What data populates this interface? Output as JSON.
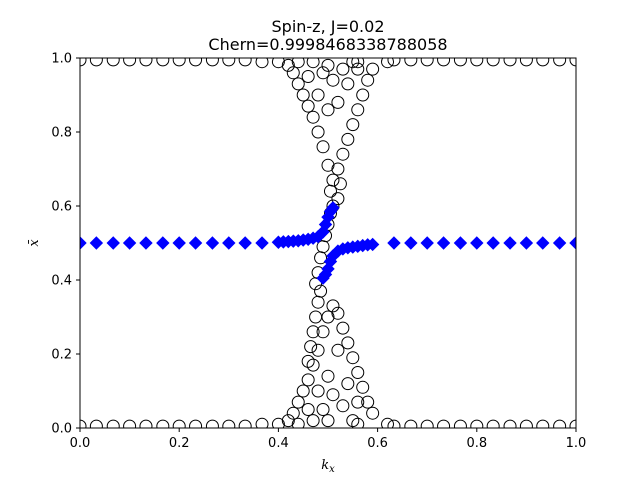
{
  "chart_data": {
    "type": "scatter",
    "title_line1": "Spin-z, J=0.02",
    "title_line2": "Chern=0.9998468338788058",
    "xlabel": "k_x",
    "ylabel": "x̄",
    "xlim": [
      0,
      1
    ],
    "ylim": [
      0,
      1
    ],
    "xticks": [
      "0.0",
      "0.2",
      "0.4",
      "0.6",
      "0.8",
      "1.0"
    ],
    "yticks": [
      "0.0",
      "0.2",
      "0.4",
      "0.6",
      "0.8",
      "1.0"
    ],
    "grid": false,
    "series": [
      {
        "marker": "open-circle",
        "color": "#000000",
        "points": [
          [
            0.0,
            0.995
          ],
          [
            0.033,
            0.995
          ],
          [
            0.067,
            0.995
          ],
          [
            0.1,
            0.995
          ],
          [
            0.133,
            0.995
          ],
          [
            0.167,
            0.995
          ],
          [
            0.2,
            0.995
          ],
          [
            0.233,
            0.995
          ],
          [
            0.267,
            0.995
          ],
          [
            0.3,
            0.995
          ],
          [
            0.333,
            0.995
          ],
          [
            0.367,
            0.99
          ],
          [
            0.4,
            0.99
          ],
          [
            0.0,
            0.005
          ],
          [
            0.033,
            0.005
          ],
          [
            0.067,
            0.005
          ],
          [
            0.1,
            0.005
          ],
          [
            0.133,
            0.005
          ],
          [
            0.167,
            0.005
          ],
          [
            0.2,
            0.005
          ],
          [
            0.233,
            0.005
          ],
          [
            0.267,
            0.005
          ],
          [
            0.3,
            0.005
          ],
          [
            0.333,
            0.005
          ],
          [
            0.367,
            0.01
          ],
          [
            0.4,
            0.01
          ],
          [
            0.62,
            0.99
          ],
          [
            0.633,
            0.995
          ],
          [
            0.667,
            0.995
          ],
          [
            0.7,
            0.995
          ],
          [
            0.733,
            0.995
          ],
          [
            0.767,
            0.995
          ],
          [
            0.8,
            0.995
          ],
          [
            0.833,
            0.995
          ],
          [
            0.867,
            0.995
          ],
          [
            0.9,
            0.995
          ],
          [
            0.933,
            0.995
          ],
          [
            0.967,
            0.995
          ],
          [
            1.0,
            0.995
          ],
          [
            0.62,
            0.01
          ],
          [
            0.633,
            0.005
          ],
          [
            0.667,
            0.005
          ],
          [
            0.7,
            0.005
          ],
          [
            0.733,
            0.005
          ],
          [
            0.767,
            0.005
          ],
          [
            0.8,
            0.005
          ],
          [
            0.833,
            0.005
          ],
          [
            0.867,
            0.005
          ],
          [
            0.9,
            0.005
          ],
          [
            0.933,
            0.005
          ],
          [
            0.967,
            0.005
          ],
          [
            1.0,
            0.005
          ],
          [
            0.42,
            0.98
          ],
          [
            0.43,
            0.96
          ],
          [
            0.44,
            0.93
          ],
          [
            0.45,
            0.9
          ],
          [
            0.46,
            0.87
          ],
          [
            0.47,
            0.84
          ],
          [
            0.48,
            0.8
          ],
          [
            0.49,
            0.76
          ],
          [
            0.5,
            0.71
          ],
          [
            0.51,
            0.67
          ],
          [
            0.52,
            0.7
          ],
          [
            0.53,
            0.74
          ],
          [
            0.54,
            0.78
          ],
          [
            0.55,
            0.82
          ],
          [
            0.56,
            0.86
          ],
          [
            0.57,
            0.9
          ],
          [
            0.58,
            0.94
          ],
          [
            0.59,
            0.97
          ],
          [
            0.46,
            0.95
          ],
          [
            0.48,
            0.9
          ],
          [
            0.5,
            0.86
          ],
          [
            0.52,
            0.88
          ],
          [
            0.54,
            0.93
          ],
          [
            0.56,
            0.97
          ],
          [
            0.47,
            0.99
          ],
          [
            0.49,
            0.96
          ],
          [
            0.51,
            0.94
          ],
          [
            0.53,
            0.97
          ],
          [
            0.55,
            0.99
          ],
          [
            0.505,
            0.64
          ],
          [
            0.51,
            0.6
          ],
          [
            0.505,
            0.58
          ],
          [
            0.5,
            0.55
          ],
          [
            0.495,
            0.52
          ],
          [
            0.49,
            0.49
          ],
          [
            0.485,
            0.46
          ],
          [
            0.48,
            0.42
          ],
          [
            0.475,
            0.39
          ],
          [
            0.52,
            0.62
          ],
          [
            0.525,
            0.66
          ],
          [
            0.42,
            0.02
          ],
          [
            0.43,
            0.04
          ],
          [
            0.44,
            0.07
          ],
          [
            0.45,
            0.1
          ],
          [
            0.46,
            0.13
          ],
          [
            0.47,
            0.17
          ],
          [
            0.48,
            0.21
          ],
          [
            0.49,
            0.26
          ],
          [
            0.5,
            0.3
          ],
          [
            0.51,
            0.33
          ],
          [
            0.52,
            0.31
          ],
          [
            0.53,
            0.27
          ],
          [
            0.54,
            0.23
          ],
          [
            0.55,
            0.19
          ],
          [
            0.56,
            0.15
          ],
          [
            0.57,
            0.11
          ],
          [
            0.58,
            0.07
          ],
          [
            0.59,
            0.04
          ],
          [
            0.46,
            0.05
          ],
          [
            0.48,
            0.1
          ],
          [
            0.5,
            0.14
          ],
          [
            0.52,
            0.21
          ],
          [
            0.54,
            0.12
          ],
          [
            0.56,
            0.07
          ],
          [
            0.47,
            0.02
          ],
          [
            0.49,
            0.05
          ],
          [
            0.51,
            0.09
          ],
          [
            0.53,
            0.06
          ],
          [
            0.55,
            0.02
          ],
          [
            0.48,
            0.34
          ],
          [
            0.485,
            0.37
          ],
          [
            0.475,
            0.3
          ],
          [
            0.47,
            0.26
          ],
          [
            0.465,
            0.22
          ],
          [
            0.46,
            0.18
          ],
          [
            0.5,
            0.98
          ],
          [
            0.5,
            0.02
          ],
          [
            0.44,
            0.99
          ],
          [
            0.56,
            0.01
          ],
          [
            0.44,
            0.01
          ],
          [
            0.56,
            0.99
          ]
        ]
      },
      {
        "marker": "filled-diamond",
        "color": "#0000ff",
        "points": [
          [
            0.0,
            0.5
          ],
          [
            0.033,
            0.5
          ],
          [
            0.067,
            0.5
          ],
          [
            0.1,
            0.5
          ],
          [
            0.133,
            0.5
          ],
          [
            0.167,
            0.5
          ],
          [
            0.2,
            0.5
          ],
          [
            0.233,
            0.5
          ],
          [
            0.267,
            0.5
          ],
          [
            0.3,
            0.5
          ],
          [
            0.333,
            0.5
          ],
          [
            0.367,
            0.5
          ],
          [
            0.4,
            0.502
          ],
          [
            0.41,
            0.503
          ],
          [
            0.42,
            0.504
          ],
          [
            0.43,
            0.505
          ],
          [
            0.44,
            0.506
          ],
          [
            0.45,
            0.508
          ],
          [
            0.46,
            0.51
          ],
          [
            0.47,
            0.513
          ],
          [
            0.48,
            0.517
          ],
          [
            0.49,
            0.53
          ],
          [
            0.495,
            0.55
          ],
          [
            0.5,
            0.57
          ],
          [
            0.505,
            0.585
          ],
          [
            0.51,
            0.595
          ],
          [
            0.49,
            0.405
          ],
          [
            0.495,
            0.415
          ],
          [
            0.5,
            0.43
          ],
          [
            0.505,
            0.45
          ],
          [
            0.51,
            0.465
          ],
          [
            0.52,
            0.478
          ],
          [
            0.53,
            0.484
          ],
          [
            0.54,
            0.487
          ],
          [
            0.55,
            0.489
          ],
          [
            0.56,
            0.491
          ],
          [
            0.57,
            0.493
          ],
          [
            0.58,
            0.495
          ],
          [
            0.59,
            0.496
          ],
          [
            0.633,
            0.5
          ],
          [
            0.667,
            0.5
          ],
          [
            0.7,
            0.5
          ],
          [
            0.733,
            0.5
          ],
          [
            0.767,
            0.5
          ],
          [
            0.8,
            0.5
          ],
          [
            0.833,
            0.5
          ],
          [
            0.867,
            0.5
          ],
          [
            0.9,
            0.5
          ],
          [
            0.933,
            0.5
          ],
          [
            0.967,
            0.5
          ],
          [
            1.0,
            0.5
          ]
        ]
      }
    ]
  }
}
